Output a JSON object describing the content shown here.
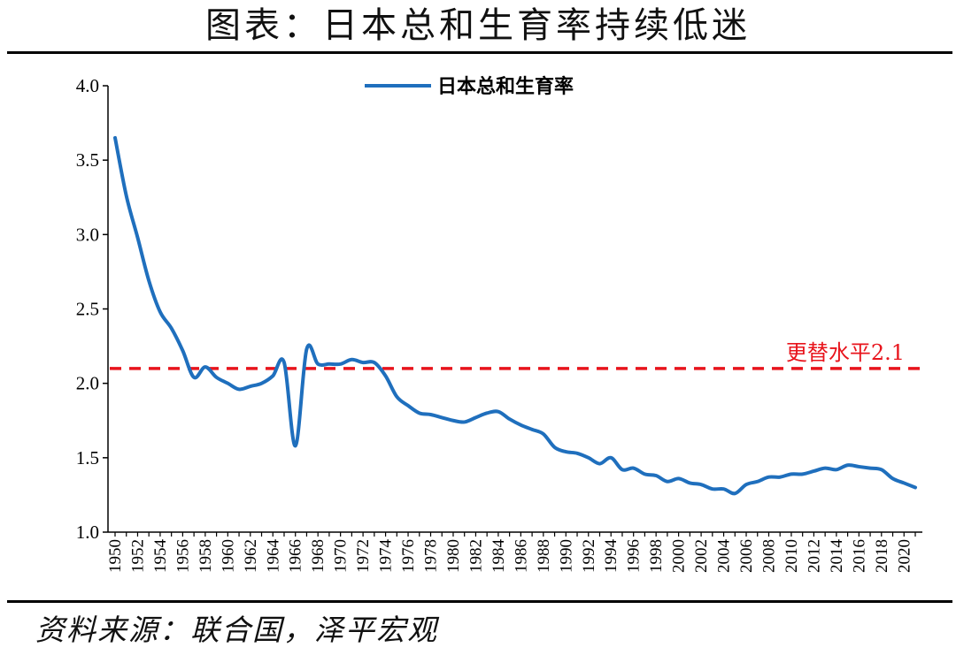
{
  "title": "图表：日本总和生育率持续低迷",
  "source": "资料来源：联合国，泽平宏观",
  "colors": {
    "series": "#1f6fbd",
    "reference": "#e8141c",
    "axis": "#000000"
  },
  "chart_data": {
    "type": "line",
    "title": "图表：日本总和生育率持续低迷",
    "xlabel": "",
    "ylabel": "",
    "ylim": [
      1.0,
      4.0
    ],
    "yticks": [
      "1.0",
      "1.5",
      "2.0",
      "2.5",
      "3.0",
      "3.5",
      "4.0"
    ],
    "xlim": [
      1950,
      2021
    ],
    "xticks": [
      "1950",
      "1952",
      "1954",
      "1956",
      "1958",
      "1960",
      "1962",
      "1964",
      "1966",
      "1968",
      "1970",
      "1972",
      "1974",
      "1976",
      "1978",
      "1980",
      "1982",
      "1984",
      "1986",
      "1988",
      "1990",
      "1992",
      "1994",
      "1996",
      "1998",
      "2000",
      "2002",
      "2004",
      "2006",
      "2008",
      "2010",
      "2012",
      "2014",
      "2016",
      "2018",
      "2020"
    ],
    "grid": false,
    "legend_position": "top-center",
    "series": [
      {
        "name": "日本总和生育率",
        "x": [
          1950,
          1951,
          1952,
          1953,
          1954,
          1955,
          1956,
          1957,
          1958,
          1959,
          1960,
          1961,
          1962,
          1963,
          1964,
          1965,
          1966,
          1967,
          1968,
          1969,
          1970,
          1971,
          1972,
          1973,
          1974,
          1975,
          1976,
          1977,
          1978,
          1979,
          1980,
          1981,
          1982,
          1983,
          1984,
          1985,
          1986,
          1987,
          1988,
          1989,
          1990,
          1991,
          1992,
          1993,
          1994,
          1995,
          1996,
          1997,
          1998,
          1999,
          2000,
          2001,
          2002,
          2003,
          2004,
          2005,
          2006,
          2007,
          2008,
          2009,
          2010,
          2011,
          2012,
          2013,
          2014,
          2015,
          2016,
          2017,
          2018,
          2019,
          2020,
          2021
        ],
        "values": [
          3.65,
          3.26,
          2.98,
          2.69,
          2.48,
          2.37,
          2.22,
          2.04,
          2.11,
          2.04,
          2.0,
          1.96,
          1.98,
          2.0,
          2.05,
          2.14,
          1.58,
          2.23,
          2.13,
          2.13,
          2.13,
          2.16,
          2.14,
          2.14,
          2.05,
          1.91,
          1.85,
          1.8,
          1.79,
          1.77,
          1.75,
          1.74,
          1.77,
          1.8,
          1.81,
          1.76,
          1.72,
          1.69,
          1.66,
          1.57,
          1.54,
          1.53,
          1.5,
          1.46,
          1.5,
          1.42,
          1.43,
          1.39,
          1.38,
          1.34,
          1.36,
          1.33,
          1.32,
          1.29,
          1.29,
          1.26,
          1.32,
          1.34,
          1.37,
          1.37,
          1.39,
          1.39,
          1.41,
          1.43,
          1.42,
          1.45,
          1.44,
          1.43,
          1.42,
          1.36,
          1.33,
          1.3
        ]
      }
    ],
    "reference_line": {
      "value": 2.1,
      "label": "更替水平2.1",
      "style": "dashed"
    }
  }
}
